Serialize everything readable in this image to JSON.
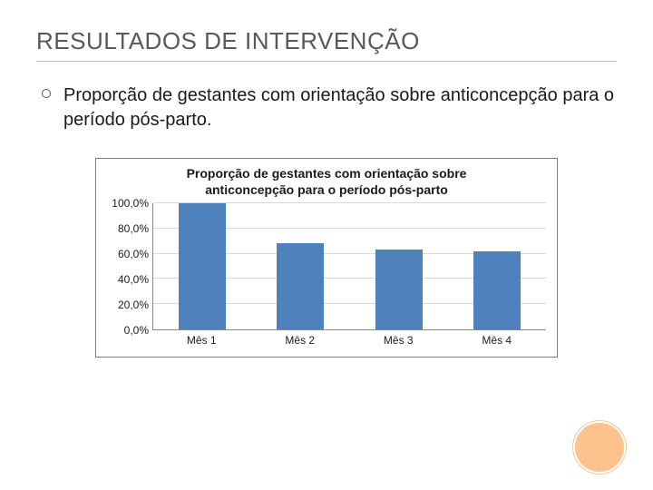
{
  "slide": {
    "title": "RESULTADOS DE INTERVENÇÃO",
    "title_color": "#595959",
    "title_fontsize": 26,
    "underline_color": "#bfbfbf",
    "bullet_text": "Proporção de gestantes com orientação sobre anticoncepção para o período pós-parto.",
    "bullet_fontsize": 20,
    "bullet_text_color": "#1a1a1a"
  },
  "chart": {
    "type": "bar",
    "title_line1": "Proporção de gestantes com orientação sobre",
    "title_line2": "anticoncepção para o período pós-parto",
    "title_fontsize": 14,
    "categories": [
      "Mês 1",
      "Mês 2",
      "Mês 3",
      "Mês 4"
    ],
    "values": [
      100.0,
      68.0,
      63.0,
      62.0
    ],
    "ylim": [
      0,
      100
    ],
    "ytick_step": 20,
    "ytick_labels": [
      "100,0%",
      "80,0%",
      "60,0%",
      "40,0%",
      "20,0%",
      "0,0%"
    ],
    "bar_color": "#4f81bd",
    "bar_width_pct": 12,
    "background_color": "#ffffff",
    "grid_color": "#d9d9d9",
    "axis_color": "#888888",
    "label_fontsize": 12,
    "label_color": "#1a1a1a",
    "border_color": "#7f7f7f"
  },
  "decor": {
    "circle_color": "#fdc38d"
  }
}
